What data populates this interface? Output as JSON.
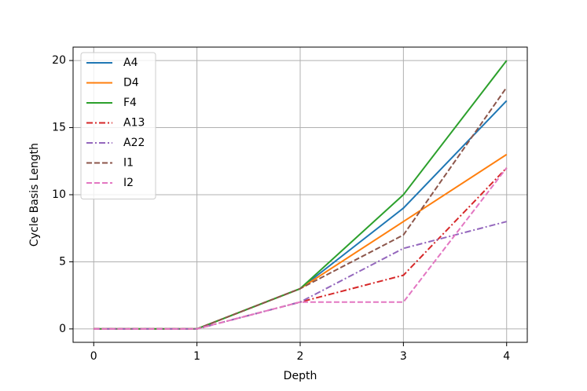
{
  "chart_data": {
    "type": "line",
    "xlabel": "Depth",
    "ylabel": "Cycle Basis Length",
    "x": [
      0,
      1,
      2,
      3,
      4
    ],
    "xlim": [
      -0.2,
      4.2
    ],
    "ylim": [
      -1,
      21
    ],
    "xticks": [
      0,
      1,
      2,
      3,
      4
    ],
    "yticks": [
      0,
      5,
      10,
      15,
      20
    ],
    "grid": true,
    "legend": "upper-left",
    "series": [
      {
        "name": "A4",
        "color": "#1f77b4",
        "linestyle": "solid",
        "values": [
          0,
          0,
          3,
          9,
          17
        ]
      },
      {
        "name": "D4",
        "color": "#ff7f0e",
        "linestyle": "solid",
        "values": [
          0,
          0,
          3,
          8,
          13
        ]
      },
      {
        "name": "F4",
        "color": "#2ca02c",
        "linestyle": "solid",
        "values": [
          0,
          0,
          3,
          10,
          20
        ]
      },
      {
        "name": "A13",
        "color": "#d62728",
        "linestyle": "dashdot",
        "values": [
          0,
          0,
          2,
          4,
          12
        ]
      },
      {
        "name": "A22",
        "color": "#9467bd",
        "linestyle": "dashdot",
        "values": [
          0,
          0,
          2,
          6,
          8
        ]
      },
      {
        "name": "I1",
        "color": "#8c564b",
        "linestyle": "dashed",
        "values": [
          0,
          0,
          3,
          7,
          18
        ]
      },
      {
        "name": "I2",
        "color": "#e377c2",
        "linestyle": "dashed",
        "values": [
          0,
          0,
          2,
          2,
          12
        ]
      }
    ]
  }
}
